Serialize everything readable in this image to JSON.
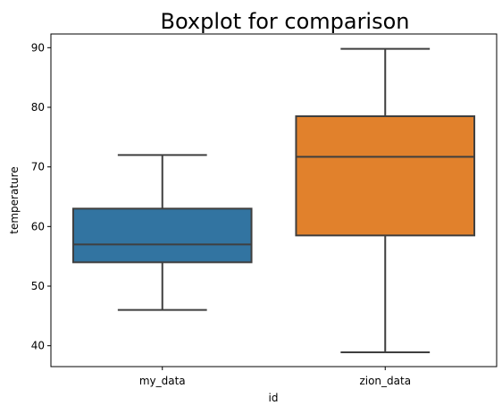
{
  "chart_data": {
    "type": "boxplot",
    "title": "Boxplot for comparison",
    "xlabel": "id",
    "ylabel": "temperature",
    "ylim": [
      36.5,
      92.3
    ],
    "yticks": [
      40,
      50,
      60,
      70,
      80,
      90
    ],
    "categories": [
      "my_data",
      "zion_data"
    ],
    "boxes": [
      {
        "category": "my_data",
        "whisker_low": 46,
        "q1": 54,
        "median": 57,
        "q3": 63,
        "whisker_high": 72,
        "color": "#3274a1"
      },
      {
        "category": "zion_data",
        "whisker_low": 38.9,
        "q1": 58.5,
        "median": 71.7,
        "q3": 78.5,
        "whisker_high": 89.8,
        "color": "#e1812c"
      }
    ],
    "line_color": "#3f3f3f",
    "grid": false,
    "legend": "none"
  }
}
